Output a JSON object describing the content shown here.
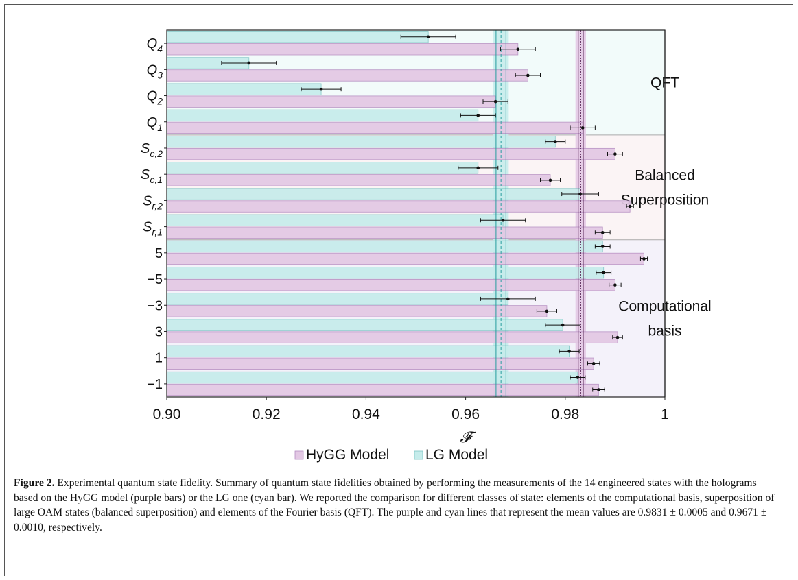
{
  "chart_data": {
    "type": "bar",
    "orientation": "horizontal",
    "xlabel": "𝓕",
    "xlim": [
      0.9,
      1.0
    ],
    "xticks": [
      "0.90",
      "0.92",
      "0.94",
      "0.96",
      "0.98",
      "1"
    ],
    "xtick_values": [
      0.9,
      0.92,
      0.94,
      0.96,
      0.98,
      1.0
    ],
    "categories": [
      {
        "base": "Q",
        "sub": "4",
        "lg": 0.9525,
        "lg_err": 0.0055,
        "hygg": 0.9705,
        "hygg_err": 0.0035
      },
      {
        "base": "Q",
        "sub": "3",
        "lg": 0.9165,
        "lg_err": 0.0055,
        "hygg": 0.9725,
        "hygg_err": 0.0025
      },
      {
        "base": "Q",
        "sub": "2",
        "lg": 0.931,
        "lg_err": 0.004,
        "hygg": 0.966,
        "hygg_err": 0.0025
      },
      {
        "base": "Q",
        "sub": "1",
        "lg": 0.9625,
        "lg_err": 0.0035,
        "hygg": 0.9835,
        "hygg_err": 0.0025
      },
      {
        "base": "S",
        "sub": "c,2",
        "lg": 0.978,
        "lg_err": 0.002,
        "hygg": 0.99,
        "hygg_err": 0.0015
      },
      {
        "base": "S",
        "sub": "c,1",
        "lg": 0.9625,
        "lg_err": 0.004,
        "hygg": 0.977,
        "hygg_err": 0.002
      },
      {
        "base": "S",
        "sub": "r,2",
        "lg": 0.983,
        "lg_err": 0.0037,
        "hygg": 0.993,
        "hygg_err": 0.0007
      },
      {
        "base": "S",
        "sub": "r,1",
        "lg": 0.9675,
        "lg_err": 0.0045,
        "hygg": 0.9875,
        "hygg_err": 0.0015
      },
      {
        "base": "5",
        "sub": "",
        "lg": 0.9875,
        "lg_err": 0.0015,
        "hygg": 0.9958,
        "hygg_err": 0.0007
      },
      {
        "base": "−5",
        "sub": "",
        "lg": 0.9877,
        "lg_err": 0.0015,
        "hygg": 0.99,
        "hygg_err": 0.0012
      },
      {
        "base": "−3",
        "sub": "",
        "lg": 0.9685,
        "lg_err": 0.0055,
        "hygg": 0.9763,
        "hygg_err": 0.002
      },
      {
        "base": "3",
        "sub": "",
        "lg": 0.9795,
        "lg_err": 0.0035,
        "hygg": 0.9905,
        "hygg_err": 0.001
      },
      {
        "base": "1",
        "sub": "",
        "lg": 0.9808,
        "lg_err": 0.002,
        "hygg": 0.9857,
        "hygg_err": 0.0012
      },
      {
        "base": "−1",
        "sub": "",
        "lg": 0.9825,
        "lg_err": 0.0015,
        "hygg": 0.9867,
        "hygg_err": 0.0012
      }
    ],
    "series": [
      {
        "name": "HyGG Model",
        "color": "#e3c8e4",
        "edge": "#b48cc0",
        "mean": 0.9831,
        "mean_err": 0.0005,
        "line_color": "#4d1a4a"
      },
      {
        "name": "LG Model",
        "color": "#c6eceb",
        "edge": "#7cc4c4",
        "mean": 0.9671,
        "mean_err": 0.001,
        "line_color": "#2a9fa0"
      }
    ],
    "groups": [
      {
        "lines": [
          "QFT"
        ],
        "from": 0,
        "to": 3,
        "bg": "#f2fbfa"
      },
      {
        "lines": [
          "Balanced",
          "Superposition"
        ],
        "from": 4,
        "to": 7,
        "bg": "#fbf4f5"
      },
      {
        "lines": [
          "Computational",
          "basis"
        ],
        "from": 8,
        "to": 13,
        "bg": "#f4f2fa"
      }
    ],
    "legend_position": "bottom-center",
    "grid": false
  },
  "caption": {
    "label": "Figure 2.",
    "text": "Experimental quantum state fidelity. Summary of quantum state fidelities obtained by performing the measurements of the 14 engineered states with the holograms based on the HyGG model (purple bars) or the LG one (cyan bar). We reported the comparison for different classes of state: elements of the computational basis, superposition of large OAM states (balanced superposition) and elements of the Fourier basis (QFT). The purple and cyan lines that represent the mean values are 0.9831 ± 0.0005 and 0.9671 ± 0.0010, respectively."
  }
}
